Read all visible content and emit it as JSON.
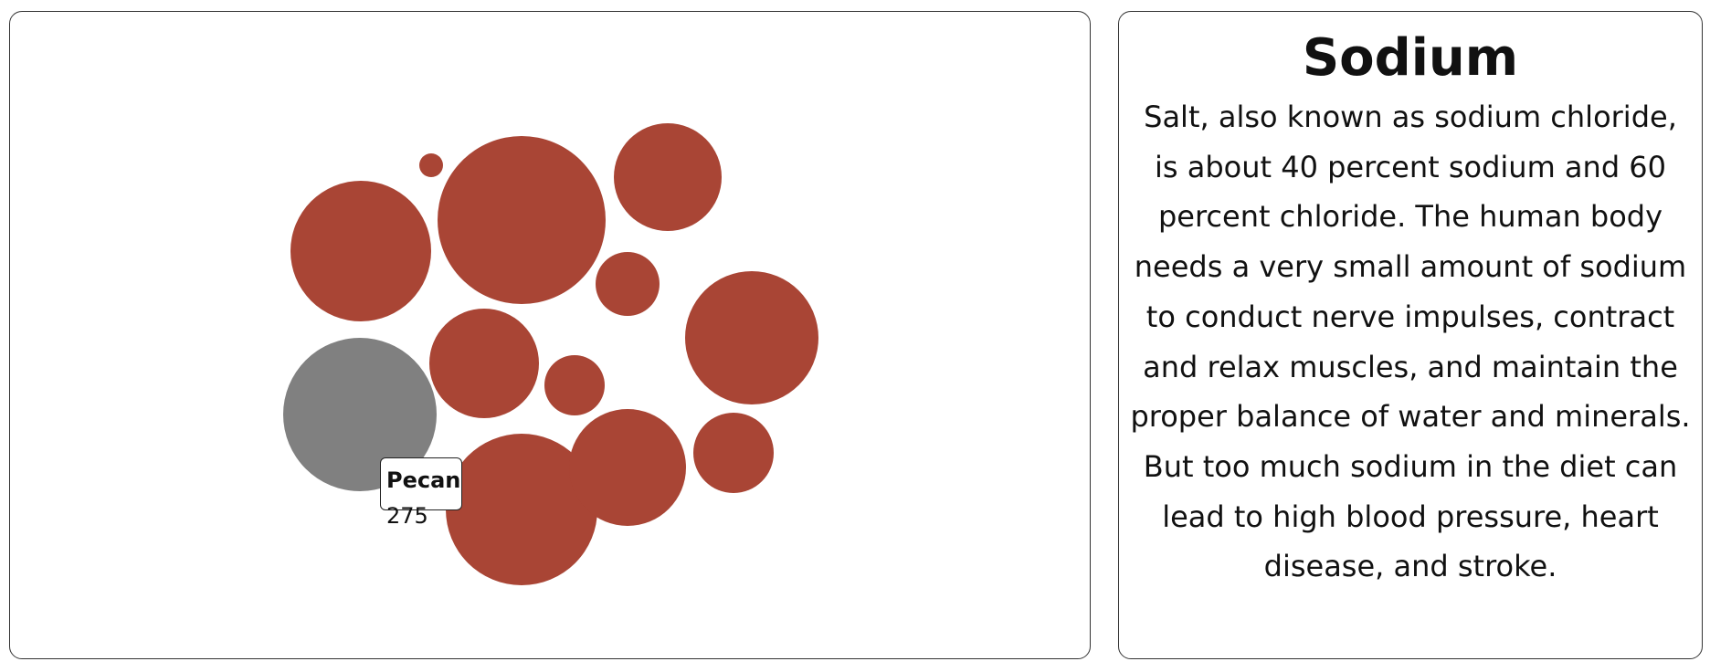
{
  "tooltip": {
    "name": "Pecan",
    "value": "275"
  },
  "info": {
    "title": "Sodium",
    "body": "Salt, also known as sodium chloride, is about 40 percent sodium and 60 percent chloride. The human body needs a very small amount of sodium to conduct nerve impulses, contract and relax muscles, and maintain the proper balance of water and minerals. But too much sodium in the diet can lead to high blood pressure, heart disease, and stroke."
  },
  "colors": {
    "bubble": "#a94535",
    "highlight": "#808080",
    "border": "#333333"
  },
  "chart_data": {
    "type": "bubble",
    "highlighted": "Pecan",
    "bubbles": [
      {
        "name": "Pecan",
        "value": 275,
        "highlighted": true
      }
    ]
  }
}
